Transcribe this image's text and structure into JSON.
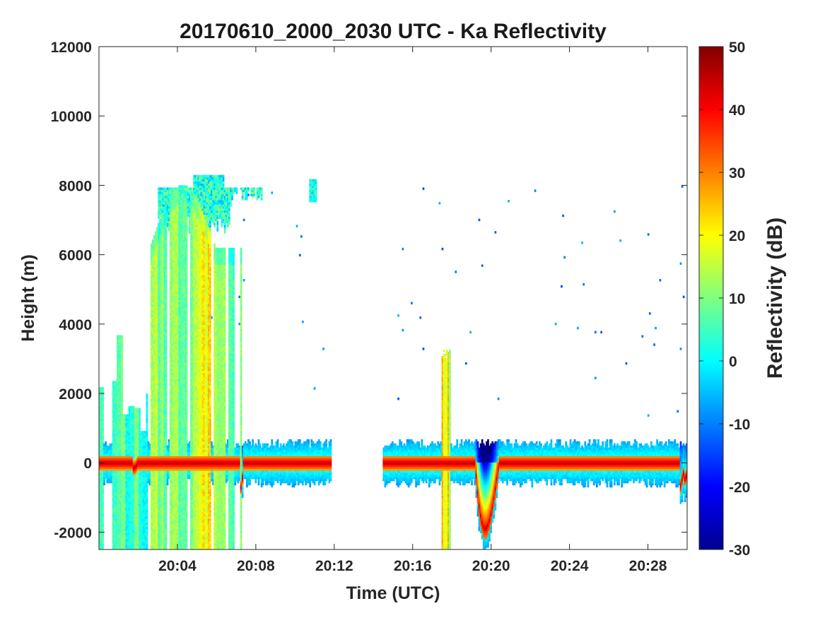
{
  "chart_data": {
    "type": "heatmap",
    "title": "20170610_2000_2030 UTC - Ka Reflectivity",
    "xlabel": "Time (UTC)",
    "ylabel": "Height (m)",
    "xlim_minutes": [
      0,
      30
    ],
    "ylim": [
      -2500,
      12000
    ],
    "x_ticks": [
      {
        "minute": 4,
        "label": "20:04"
      },
      {
        "minute": 8,
        "label": "20:08"
      },
      {
        "minute": 12,
        "label": "20:12"
      },
      {
        "minute": 16,
        "label": "20:16"
      },
      {
        "minute": 20,
        "label": "20:20"
      },
      {
        "minute": 24,
        "label": "20:24"
      },
      {
        "minute": 28,
        "label": "20:28"
      }
    ],
    "y_ticks": [
      {
        "value": -2000,
        "label": "-2000"
      },
      {
        "value": 0,
        "label": "0"
      },
      {
        "value": 2000,
        "label": "2000"
      },
      {
        "value": 4000,
        "label": "4000"
      },
      {
        "value": 6000,
        "label": "6000"
      },
      {
        "value": 8000,
        "label": "8000"
      },
      {
        "value": 10000,
        "label": "10000"
      },
      {
        "value": 12000,
        "label": "12000"
      }
    ],
    "colorbar": {
      "label": "Reflectivity (dB)",
      "range": [
        -30,
        50
      ],
      "colormap": "jet",
      "ticks": [
        {
          "value": -30,
          "label": "-30"
        },
        {
          "value": -20,
          "label": "-20"
        },
        {
          "value": -10,
          "label": "-10"
        },
        {
          "value": 0,
          "label": "0"
        },
        {
          "value": 10,
          "label": "10"
        },
        {
          "value": 20,
          "label": "20"
        },
        {
          "value": 30,
          "label": "30"
        },
        {
          "value": 40,
          "label": "40"
        },
        {
          "value": 50,
          "label": "50"
        }
      ]
    },
    "data_gaps_minutes": [
      [
        11.8,
        14.4
      ]
    ],
    "features": [
      {
        "name": "surface-return",
        "x_minutes": [
          0,
          30
        ],
        "center_m": 0,
        "peak_db": 45,
        "excluding_gap": true
      },
      {
        "name": "surface-clutter",
        "x_minutes": [
          0,
          30
        ],
        "height_m": [
          -700,
          700
        ],
        "db": -5
      },
      {
        "name": "deep-echo-column",
        "x_minutes": [
          2.6,
          7.3
        ],
        "height_m": [
          -2500,
          8200
        ],
        "db_range": [
          0,
          30
        ]
      },
      {
        "name": "low-echo-columns",
        "x_minutes": [
          0,
          2.6
        ],
        "height_m": [
          -2500,
          3700
        ],
        "db_range": [
          -12,
          15
        ]
      },
      {
        "name": "anvil-top",
        "x_minutes": [
          3.0,
          8.3
        ],
        "height_m": [
          7300,
          8300
        ],
        "db_range": [
          -10,
          15
        ]
      },
      {
        "name": "isolated-echo",
        "x_minutes": [
          10.7,
          11.1
        ],
        "height_m": [
          7500,
          8200
        ],
        "db": 0
      },
      {
        "name": "narrow-spike",
        "x_minutes": [
          17.5,
          17.9
        ],
        "height_m": [
          -2500,
          3400
        ],
        "db_range": [
          5,
          30
        ]
      },
      {
        "name": "surface-dip",
        "x_minutes": [
          19.2,
          20.4
        ],
        "height_m": [
          -2100,
          0
        ],
        "db_range": [
          20,
          45
        ]
      }
    ]
  }
}
